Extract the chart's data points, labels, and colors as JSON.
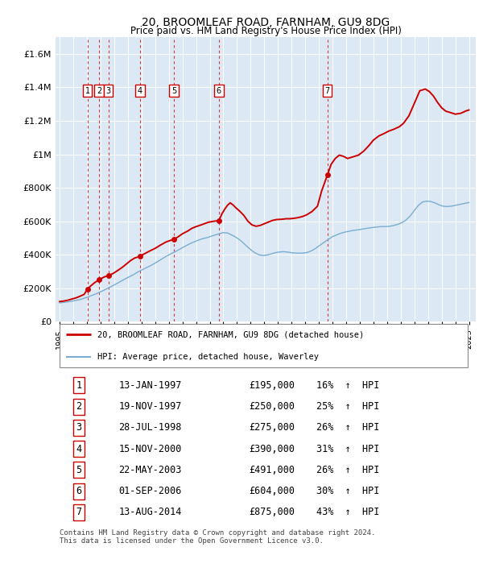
{
  "title": "20, BROOMLEAF ROAD, FARNHAM, GU9 8DG",
  "subtitle": "Price paid vs. HM Land Registry's House Price Index (HPI)",
  "ylim": [
    0,
    1700000
  ],
  "yticks": [
    0,
    200000,
    400000,
    600000,
    800000,
    1000000,
    1200000,
    1400000,
    1600000
  ],
  "ytick_labels": [
    "£0",
    "£200K",
    "£400K",
    "£600K",
    "£800K",
    "£1M",
    "£1.2M",
    "£1.4M",
    "£1.6M"
  ],
  "xlim_start": 1994.7,
  "xlim_end": 2025.5,
  "chart_bg": "#dce9f5",
  "fig_bg": "#ffffff",
  "sales": [
    {
      "num": 1,
      "date": "13-JAN-1997",
      "year": 1997.04,
      "price": 195000,
      "pct": "16%"
    },
    {
      "num": 2,
      "date": "19-NOV-1997",
      "year": 1997.89,
      "price": 250000,
      "pct": "25%"
    },
    {
      "num": 3,
      "date": "28-JUL-1998",
      "year": 1998.57,
      "price": 275000,
      "pct": "26%"
    },
    {
      "num": 4,
      "date": "15-NOV-2000",
      "year": 2000.88,
      "price": 390000,
      "pct": "31%"
    },
    {
      "num": 5,
      "date": "22-MAY-2003",
      "year": 2003.39,
      "price": 491000,
      "pct": "26%"
    },
    {
      "num": 6,
      "date": "01-SEP-2006",
      "year": 2006.67,
      "price": 604000,
      "pct": "30%"
    },
    {
      "num": 7,
      "date": "13-AUG-2014",
      "year": 2014.62,
      "price": 875000,
      "pct": "43%"
    }
  ],
  "red_line_color": "#cc0000",
  "blue_line_color": "#7aadcf",
  "legend_label_red": "20, BROOMLEAF ROAD, FARNHAM, GU9 8DG (detached house)",
  "legend_label_blue": "HPI: Average price, detached house, Waverley",
  "footer": "Contains HM Land Registry data © Crown copyright and database right 2024.\nThis data is licensed under the Open Government Licence v3.0.",
  "xtick_years": [
    1995,
    1996,
    1997,
    1998,
    1999,
    2000,
    2001,
    2002,
    2003,
    2004,
    2005,
    2006,
    2007,
    2008,
    2009,
    2010,
    2011,
    2012,
    2013,
    2014,
    2015,
    2016,
    2017,
    2018,
    2019,
    2020,
    2021,
    2022,
    2023,
    2024,
    2025
  ],
  "red_years": [
    1995.0,
    1995.3,
    1995.6,
    1995.9,
    1996.2,
    1996.5,
    1996.8,
    1997.04,
    1997.3,
    1997.6,
    1997.89,
    1998.1,
    1998.3,
    1998.57,
    1998.8,
    1999.0,
    1999.3,
    1999.6,
    1999.9,
    2000.2,
    2000.5,
    2000.88,
    2001.2,
    2001.6,
    2002.0,
    2002.4,
    2002.8,
    2003.1,
    2003.39,
    2003.7,
    2004.0,
    2004.4,
    2004.7,
    2005.0,
    2005.3,
    2005.6,
    2005.9,
    2006.3,
    2006.67,
    2006.9,
    2007.1,
    2007.3,
    2007.5,
    2007.7,
    2007.9,
    2008.2,
    2008.5,
    2008.8,
    2009.1,
    2009.4,
    2009.7,
    2010.0,
    2010.3,
    2010.6,
    2010.9,
    2011.3,
    2011.6,
    2011.9,
    2012.2,
    2012.5,
    2012.8,
    2013.1,
    2013.5,
    2013.9,
    2014.2,
    2014.62,
    2014.9,
    2015.2,
    2015.5,
    2015.8,
    2016.1,
    2016.5,
    2016.9,
    2017.3,
    2017.7,
    2018.0,
    2018.4,
    2018.8,
    2019.1,
    2019.5,
    2019.9,
    2020.2,
    2020.6,
    2021.0,
    2021.4,
    2021.8,
    2022.1,
    2022.4,
    2022.7,
    2023.0,
    2023.3,
    2023.7,
    2024.0,
    2024.4,
    2024.8,
    2025.0
  ],
  "red_vals": [
    120000,
    123000,
    128000,
    135000,
    142000,
    152000,
    163000,
    195000,
    215000,
    235000,
    250000,
    260000,
    268000,
    275000,
    283000,
    292000,
    308000,
    325000,
    345000,
    365000,
    380000,
    390000,
    405000,
    422000,
    438000,
    458000,
    476000,
    485000,
    491000,
    508000,
    525000,
    542000,
    558000,
    568000,
    576000,
    585000,
    594000,
    600000,
    604000,
    645000,
    672000,
    695000,
    710000,
    698000,
    682000,
    660000,
    635000,
    600000,
    578000,
    570000,
    575000,
    585000,
    595000,
    605000,
    610000,
    612000,
    615000,
    615000,
    618000,
    622000,
    628000,
    638000,
    658000,
    690000,
    780000,
    875000,
    940000,
    975000,
    995000,
    988000,
    975000,
    985000,
    995000,
    1020000,
    1055000,
    1085000,
    1110000,
    1125000,
    1138000,
    1150000,
    1165000,
    1185000,
    1230000,
    1305000,
    1380000,
    1390000,
    1375000,
    1348000,
    1310000,
    1278000,
    1258000,
    1248000,
    1240000,
    1245000,
    1260000,
    1265000
  ],
  "blue_years": [
    1995.0,
    1995.3,
    1995.6,
    1995.9,
    1996.2,
    1996.5,
    1996.8,
    1997.1,
    1997.4,
    1997.7,
    1998.0,
    1998.3,
    1998.6,
    1998.9,
    1999.2,
    1999.5,
    1999.8,
    2000.1,
    2000.4,
    2000.7,
    2001.0,
    2001.3,
    2001.6,
    2001.9,
    2002.2,
    2002.5,
    2002.8,
    2003.1,
    2003.4,
    2003.7,
    2004.0,
    2004.3,
    2004.6,
    2004.9,
    2005.2,
    2005.5,
    2005.8,
    2006.1,
    2006.4,
    2006.7,
    2007.0,
    2007.3,
    2007.5,
    2007.8,
    2008.1,
    2008.4,
    2008.7,
    2009.0,
    2009.3,
    2009.6,
    2009.9,
    2010.2,
    2010.5,
    2010.8,
    2011.1,
    2011.4,
    2011.7,
    2012.0,
    2012.3,
    2012.6,
    2012.9,
    2013.2,
    2013.5,
    2013.8,
    2014.1,
    2014.4,
    2014.7,
    2015.0,
    2015.3,
    2015.6,
    2015.9,
    2016.2,
    2016.5,
    2016.8,
    2017.1,
    2017.4,
    2017.7,
    2018.0,
    2018.3,
    2018.6,
    2018.9,
    2019.2,
    2019.5,
    2019.8,
    2020.1,
    2020.4,
    2020.7,
    2021.0,
    2021.3,
    2021.6,
    2021.9,
    2022.2,
    2022.5,
    2022.8,
    2023.1,
    2023.4,
    2023.7,
    2024.0,
    2024.3,
    2024.6,
    2025.0
  ],
  "blue_vals": [
    112000,
    115000,
    118000,
    122000,
    127000,
    132000,
    140000,
    148000,
    158000,
    167000,
    178000,
    190000,
    202000,
    215000,
    228000,
    242000,
    255000,
    268000,
    280000,
    295000,
    308000,
    320000,
    332000,
    345000,
    360000,
    375000,
    390000,
    403000,
    415000,
    428000,
    442000,
    455000,
    468000,
    478000,
    488000,
    496000,
    502000,
    510000,
    518000,
    525000,
    532000,
    530000,
    522000,
    510000,
    495000,
    475000,
    452000,
    430000,
    412000,
    400000,
    395000,
    398000,
    405000,
    412000,
    416000,
    418000,
    416000,
    412000,
    410000,
    409000,
    410000,
    415000,
    425000,
    440000,
    458000,
    475000,
    492000,
    508000,
    518000,
    528000,
    535000,
    540000,
    545000,
    548000,
    552000,
    556000,
    560000,
    563000,
    566000,
    568000,
    568000,
    570000,
    575000,
    582000,
    592000,
    608000,
    632000,
    665000,
    695000,
    715000,
    720000,
    718000,
    710000,
    698000,
    690000,
    688000,
    690000,
    695000,
    700000,
    705000,
    712000
  ]
}
